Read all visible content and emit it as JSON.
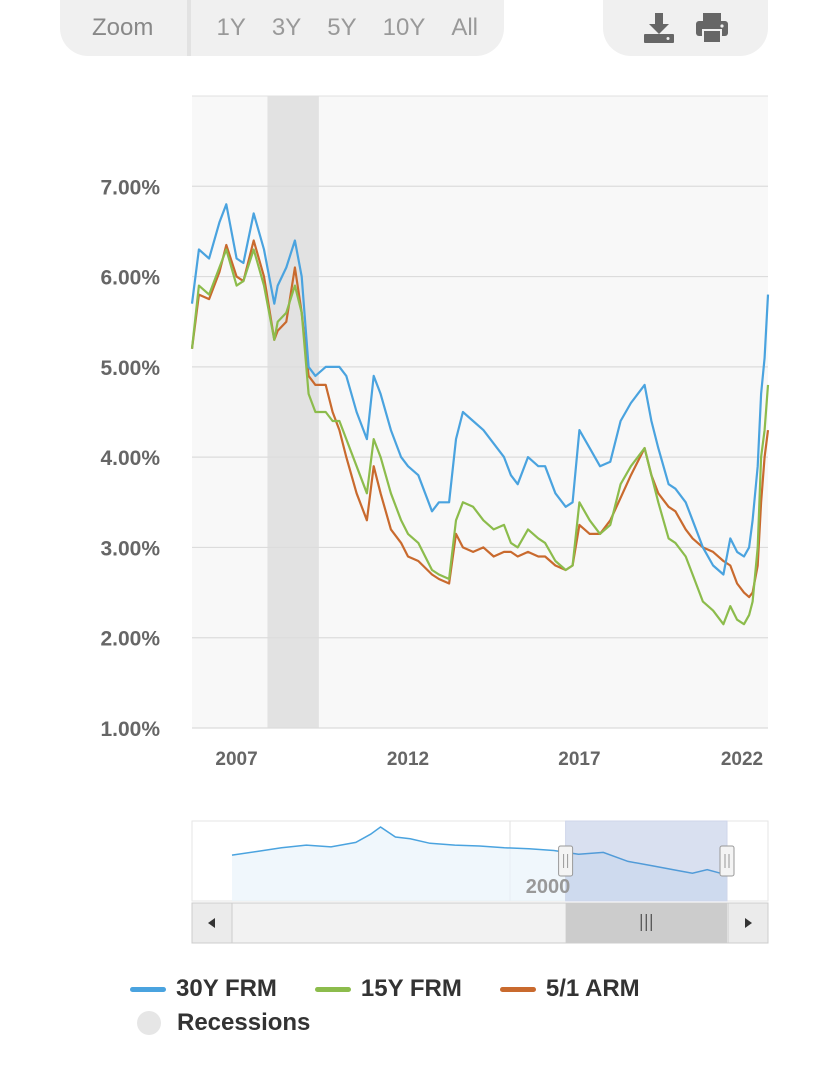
{
  "zoom": {
    "label": "Zoom",
    "buttons": [
      "1Y",
      "3Y",
      "5Y",
      "10Y",
      "All"
    ]
  },
  "toolbar": {
    "icons": [
      "download-icon",
      "print-icon"
    ]
  },
  "chart_data": {
    "type": "line",
    "title": "",
    "xlabel": "",
    "ylabel": "",
    "xlim": [
      2005.7,
      2022.5
    ],
    "ylim": [
      1.0,
      8.0
    ],
    "x_ticks": [
      "2007",
      "2012",
      "2017",
      "2022"
    ],
    "x_tick_values": [
      2007,
      2012,
      2017,
      2022
    ],
    "y_ticks": [
      "1.00%",
      "2.00%",
      "3.00%",
      "4.00%",
      "5.00%",
      "6.00%",
      "7.00%"
    ],
    "y_tick_values": [
      1,
      2,
      3,
      4,
      5,
      6,
      7
    ],
    "grid": true,
    "recession_band": [
      2007.9,
      2009.4
    ],
    "series": [
      {
        "name": "30Y FRM",
        "color": "#4aa3df",
        "x": [
          2005.7,
          2005.9,
          2006.2,
          2006.5,
          2006.7,
          2007.0,
          2007.2,
          2007.5,
          2007.8,
          2008.1,
          2008.2,
          2008.45,
          2008.7,
          2008.9,
          2009.1,
          2009.3,
          2009.6,
          2009.8,
          2010.0,
          2010.2,
          2010.5,
          2010.8,
          2011.0,
          2011.2,
          2011.5,
          2011.8,
          2012.0,
          2012.3,
          2012.7,
          2012.9,
          2013.2,
          2013.4,
          2013.6,
          2013.9,
          2014.2,
          2014.5,
          2014.8,
          2015.0,
          2015.2,
          2015.5,
          2015.8,
          2016.0,
          2016.3,
          2016.6,
          2016.8,
          2017.0,
          2017.3,
          2017.6,
          2017.9,
          2018.2,
          2018.5,
          2018.9,
          2019.1,
          2019.3,
          2019.6,
          2019.8,
          2020.1,
          2020.3,
          2020.6,
          2020.9,
          2021.2,
          2021.4,
          2021.6,
          2021.8,
          2021.95,
          2022.05,
          2022.2,
          2022.3,
          2022.4,
          2022.5
        ],
        "y": [
          5.7,
          6.3,
          6.2,
          6.6,
          6.8,
          6.2,
          6.15,
          6.7,
          6.3,
          5.7,
          5.9,
          6.1,
          6.4,
          6.0,
          5.0,
          4.9,
          5.0,
          5.0,
          5.0,
          4.9,
          4.5,
          4.2,
          4.9,
          4.7,
          4.3,
          4.0,
          3.9,
          3.8,
          3.4,
          3.5,
          3.5,
          4.2,
          4.5,
          4.4,
          4.3,
          4.15,
          4.0,
          3.8,
          3.7,
          4.0,
          3.9,
          3.9,
          3.6,
          3.45,
          3.5,
          4.3,
          4.1,
          3.9,
          3.95,
          4.4,
          4.6,
          4.8,
          4.4,
          4.1,
          3.7,
          3.65,
          3.5,
          3.3,
          3.0,
          2.8,
          2.7,
          3.1,
          2.95,
          2.9,
          3.0,
          3.3,
          3.9,
          4.7,
          5.1,
          5.8
        ]
      },
      {
        "name": "15Y FRM",
        "color": "#8cbc4c",
        "x": [
          2005.7,
          2005.9,
          2006.2,
          2006.5,
          2006.7,
          2007.0,
          2007.2,
          2007.5,
          2007.8,
          2008.1,
          2008.2,
          2008.45,
          2008.7,
          2008.9,
          2009.1,
          2009.3,
          2009.6,
          2009.8,
          2010.0,
          2010.2,
          2010.5,
          2010.8,
          2011.0,
          2011.2,
          2011.5,
          2011.8,
          2012.0,
          2012.3,
          2012.7,
          2012.9,
          2013.2,
          2013.4,
          2013.6,
          2013.9,
          2014.2,
          2014.5,
          2014.8,
          2015.0,
          2015.2,
          2015.5,
          2015.8,
          2016.0,
          2016.3,
          2016.6,
          2016.8,
          2017.0,
          2017.3,
          2017.6,
          2017.9,
          2018.2,
          2018.5,
          2018.9,
          2019.1,
          2019.3,
          2019.6,
          2019.8,
          2020.1,
          2020.3,
          2020.6,
          2020.9,
          2021.2,
          2021.4,
          2021.6,
          2021.8,
          2021.95,
          2022.05,
          2022.2,
          2022.3,
          2022.4,
          2022.5
        ],
        "y": [
          5.2,
          5.9,
          5.8,
          6.1,
          6.3,
          5.9,
          5.95,
          6.3,
          5.9,
          5.3,
          5.5,
          5.6,
          5.9,
          5.6,
          4.7,
          4.5,
          4.5,
          4.4,
          4.4,
          4.2,
          3.9,
          3.6,
          4.2,
          4.0,
          3.6,
          3.3,
          3.15,
          3.05,
          2.75,
          2.7,
          2.65,
          3.3,
          3.5,
          3.45,
          3.3,
          3.2,
          3.25,
          3.05,
          3.0,
          3.2,
          3.1,
          3.05,
          2.85,
          2.75,
          2.8,
          3.5,
          3.3,
          3.15,
          3.25,
          3.7,
          3.9,
          4.1,
          3.8,
          3.5,
          3.1,
          3.05,
          2.9,
          2.7,
          2.4,
          2.3,
          2.15,
          2.35,
          2.2,
          2.15,
          2.25,
          2.4,
          3.0,
          4.0,
          4.3,
          4.8
        ]
      },
      {
        "name": "5/1 ARM",
        "color": "#c96a2e",
        "x": [
          2005.7,
          2005.9,
          2006.2,
          2006.5,
          2006.7,
          2007.0,
          2007.2,
          2007.5,
          2007.8,
          2008.1,
          2008.2,
          2008.45,
          2008.7,
          2008.9,
          2009.1,
          2009.3,
          2009.6,
          2009.8,
          2010.0,
          2010.2,
          2010.5,
          2010.8,
          2011.0,
          2011.2,
          2011.5,
          2011.8,
          2012.0,
          2012.3,
          2012.7,
          2012.9,
          2013.2,
          2013.4,
          2013.6,
          2013.9,
          2014.2,
          2014.5,
          2014.8,
          2015.0,
          2015.2,
          2015.5,
          2015.8,
          2016.0,
          2016.3,
          2016.6,
          2016.8,
          2017.0,
          2017.3,
          2017.6,
          2017.9,
          2018.2,
          2018.5,
          2018.9,
          2019.1,
          2019.3,
          2019.6,
          2019.8,
          2020.1,
          2020.3,
          2020.6,
          2020.9,
          2021.2,
          2021.4,
          2021.6,
          2021.8,
          2021.95,
          2022.05,
          2022.2,
          2022.3,
          2022.4,
          2022.5
        ],
        "y": [
          5.2,
          5.8,
          5.75,
          6.05,
          6.35,
          6.0,
          5.95,
          6.4,
          6.0,
          5.3,
          5.4,
          5.5,
          6.1,
          5.6,
          4.9,
          4.8,
          4.8,
          4.5,
          4.3,
          4.0,
          3.6,
          3.3,
          3.9,
          3.6,
          3.2,
          3.05,
          2.9,
          2.85,
          2.7,
          2.65,
          2.6,
          3.15,
          3.0,
          2.95,
          3.0,
          2.9,
          2.95,
          2.95,
          2.9,
          2.95,
          2.9,
          2.9,
          2.8,
          2.75,
          2.8,
          3.25,
          3.15,
          3.15,
          3.3,
          3.55,
          3.8,
          4.1,
          3.8,
          3.6,
          3.45,
          3.4,
          3.2,
          3.1,
          3.0,
          2.95,
          2.85,
          2.8,
          2.6,
          2.5,
          2.45,
          2.5,
          2.8,
          3.5,
          4.0,
          4.3
        ]
      }
    ],
    "legend": [
      "30Y FRM",
      "15Y FRM",
      "5/1 ARM",
      "Recessions"
    ],
    "legend_placement": "bottom",
    "navigator": {
      "label": "2000",
      "series_color": "#4aa3df",
      "x": [
        0,
        0.05,
        0.1,
        0.15,
        0.2,
        0.25,
        0.28,
        0.3,
        0.33,
        0.36,
        0.4,
        0.45,
        0.5,
        0.55,
        0.6,
        0.65,
        0.7,
        0.75,
        0.8,
        0.85,
        0.9,
        0.93,
        0.96,
        0.98,
        1.0
      ],
      "y": [
        5.2,
        5.6,
        6.0,
        6.3,
        6.1,
        6.6,
        7.5,
        8.3,
        7.2,
        7.0,
        6.5,
        6.3,
        6.2,
        6.0,
        5.9,
        5.7,
        5.3,
        5.5,
        4.5,
        4.0,
        3.5,
        3.2,
        3.6,
        3.3,
        3.0
      ],
      "selection": [
        0.68,
        1.0
      ]
    }
  }
}
